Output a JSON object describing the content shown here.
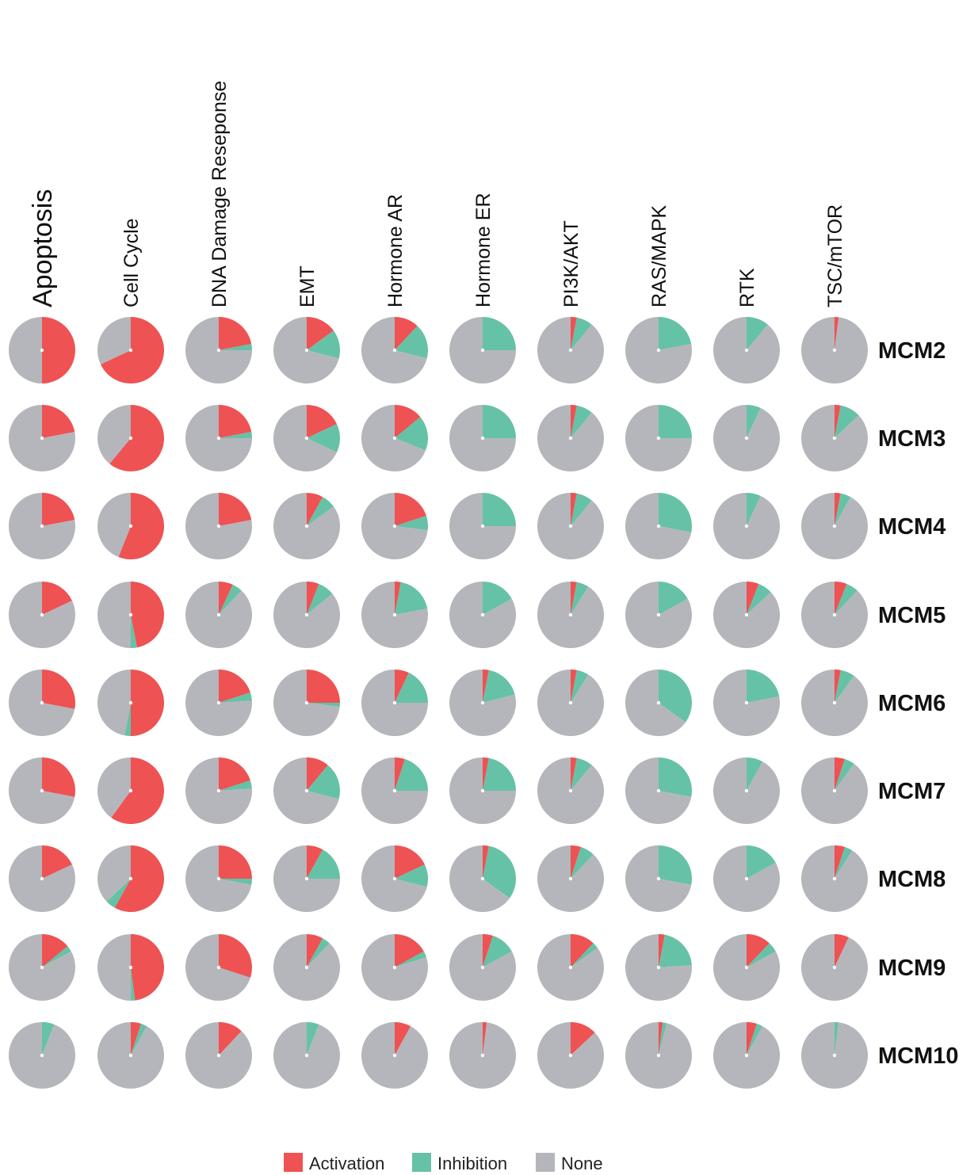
{
  "chart_data": {
    "type": "pie",
    "layout": "grid",
    "slice_order": [
      "Activation",
      "Inhibition",
      "None"
    ],
    "colors": {
      "Activation": "#ee5253",
      "Inhibition": "#66c2a6",
      "None": "#b5b6bb"
    },
    "columns": [
      "Apoptosis",
      "Cell Cycle",
      "DNA Damage Reseponse",
      "EMT",
      "Hormone AR",
      "Hormone ER",
      "PI3K/AKT",
      "RAS/MAPK",
      "RTK",
      "TSC/mTOR"
    ],
    "rows": [
      "MCM2",
      "MCM3",
      "MCM4",
      "MCM5",
      "MCM6",
      "MCM7",
      "MCM8",
      "MCM9",
      "MCM10"
    ],
    "values": [
      [
        [
          0.5,
          0.0,
          0.5
        ],
        [
          0.68,
          0.0,
          0.32
        ],
        [
          0.22,
          0.03,
          0.75
        ],
        [
          0.15,
          0.14,
          0.71
        ],
        [
          0.12,
          0.17,
          0.71
        ],
        [
          0.0,
          0.25,
          0.75
        ],
        [
          0.03,
          0.08,
          0.89
        ],
        [
          0.0,
          0.22,
          0.78
        ],
        [
          0.0,
          0.11,
          0.89
        ],
        [
          0.02,
          0.0,
          0.98
        ]
      ],
      [
        [
          0.22,
          0.0,
          0.78
        ],
        [
          0.61,
          0.0,
          0.39
        ],
        [
          0.22,
          0.03,
          0.75
        ],
        [
          0.18,
          0.14,
          0.68
        ],
        [
          0.14,
          0.17,
          0.69
        ],
        [
          0.0,
          0.25,
          0.75
        ],
        [
          0.03,
          0.08,
          0.89
        ],
        [
          0.0,
          0.25,
          0.75
        ],
        [
          0.0,
          0.07,
          0.93
        ],
        [
          0.03,
          0.1,
          0.87
        ]
      ],
      [
        [
          0.22,
          0.0,
          0.78
        ],
        [
          0.56,
          0.0,
          0.44
        ],
        [
          0.22,
          0.0,
          0.78
        ],
        [
          0.08,
          0.07,
          0.85
        ],
        [
          0.2,
          0.07,
          0.73
        ],
        [
          0.0,
          0.25,
          0.75
        ],
        [
          0.03,
          0.08,
          0.89
        ],
        [
          0.0,
          0.28,
          0.72
        ],
        [
          0.0,
          0.07,
          0.93
        ],
        [
          0.03,
          0.05,
          0.92
        ]
      ],
      [
        [
          0.18,
          0.0,
          0.82
        ],
        [
          0.47,
          0.03,
          0.5
        ],
        [
          0.07,
          0.05,
          0.88
        ],
        [
          0.06,
          0.08,
          0.86
        ],
        [
          0.03,
          0.19,
          0.78
        ],
        [
          0.0,
          0.17,
          0.83
        ],
        [
          0.03,
          0.06,
          0.91
        ],
        [
          0.0,
          0.17,
          0.83
        ],
        [
          0.06,
          0.07,
          0.87
        ],
        [
          0.06,
          0.06,
          0.88
        ]
      ],
      [
        [
          0.28,
          0.0,
          0.72
        ],
        [
          0.5,
          0.03,
          0.47
        ],
        [
          0.2,
          0.04,
          0.76
        ],
        [
          0.25,
          0.02,
          0.73
        ],
        [
          0.07,
          0.18,
          0.75
        ],
        [
          0.03,
          0.18,
          0.79
        ],
        [
          0.03,
          0.06,
          0.91
        ],
        [
          0.0,
          0.35,
          0.65
        ],
        [
          0.0,
          0.22,
          0.78
        ],
        [
          0.03,
          0.07,
          0.9
        ]
      ],
      [
        [
          0.28,
          0.0,
          0.72
        ],
        [
          0.6,
          0.0,
          0.4
        ],
        [
          0.2,
          0.04,
          0.76
        ],
        [
          0.11,
          0.18,
          0.71
        ],
        [
          0.05,
          0.2,
          0.75
        ],
        [
          0.03,
          0.22,
          0.75
        ],
        [
          0.03,
          0.08,
          0.89
        ],
        [
          0.0,
          0.28,
          0.72
        ],
        [
          0.0,
          0.08,
          0.92
        ],
        [
          0.05,
          0.05,
          0.9
        ]
      ],
      [
        [
          0.18,
          0.0,
          0.82
        ],
        [
          0.58,
          0.05,
          0.37
        ],
        [
          0.25,
          0.03,
          0.72
        ],
        [
          0.08,
          0.17,
          0.75
        ],
        [
          0.18,
          0.11,
          0.71
        ],
        [
          0.03,
          0.32,
          0.65
        ],
        [
          0.05,
          0.07,
          0.88
        ],
        [
          0.0,
          0.28,
          0.72
        ],
        [
          0.0,
          0.17,
          0.83
        ],
        [
          0.05,
          0.04,
          0.91
        ]
      ],
      [
        [
          0.14,
          0.03,
          0.83
        ],
        [
          0.48,
          0.02,
          0.5
        ],
        [
          0.3,
          0.0,
          0.7
        ],
        [
          0.08,
          0.04,
          0.88
        ],
        [
          0.17,
          0.03,
          0.8
        ],
        [
          0.05,
          0.12,
          0.83
        ],
        [
          0.12,
          0.03,
          0.85
        ],
        [
          0.03,
          0.21,
          0.76
        ],
        [
          0.12,
          0.05,
          0.83
        ],
        [
          0.07,
          0.0,
          0.93
        ]
      ],
      [
        [
          0.0,
          0.06,
          0.94
        ],
        [
          0.05,
          0.03,
          0.92
        ],
        [
          0.12,
          0.0,
          0.88
        ],
        [
          0.0,
          0.06,
          0.94
        ],
        [
          0.08,
          0.0,
          0.92
        ],
        [
          0.02,
          0.0,
          0.98
        ],
        [
          0.13,
          0.0,
          0.87
        ],
        [
          0.02,
          0.02,
          0.96
        ],
        [
          0.05,
          0.03,
          0.92
        ],
        [
          0.0,
          0.02,
          0.98
        ]
      ]
    ],
    "legend": [
      {
        "label": "Activation",
        "color": "#ee5253"
      },
      {
        "label": "Inhibition",
        "color": "#66c2a6"
      },
      {
        "label": "None",
        "color": "#b5b6bb"
      }
    ],
    "legend_position": "bottom-center"
  }
}
